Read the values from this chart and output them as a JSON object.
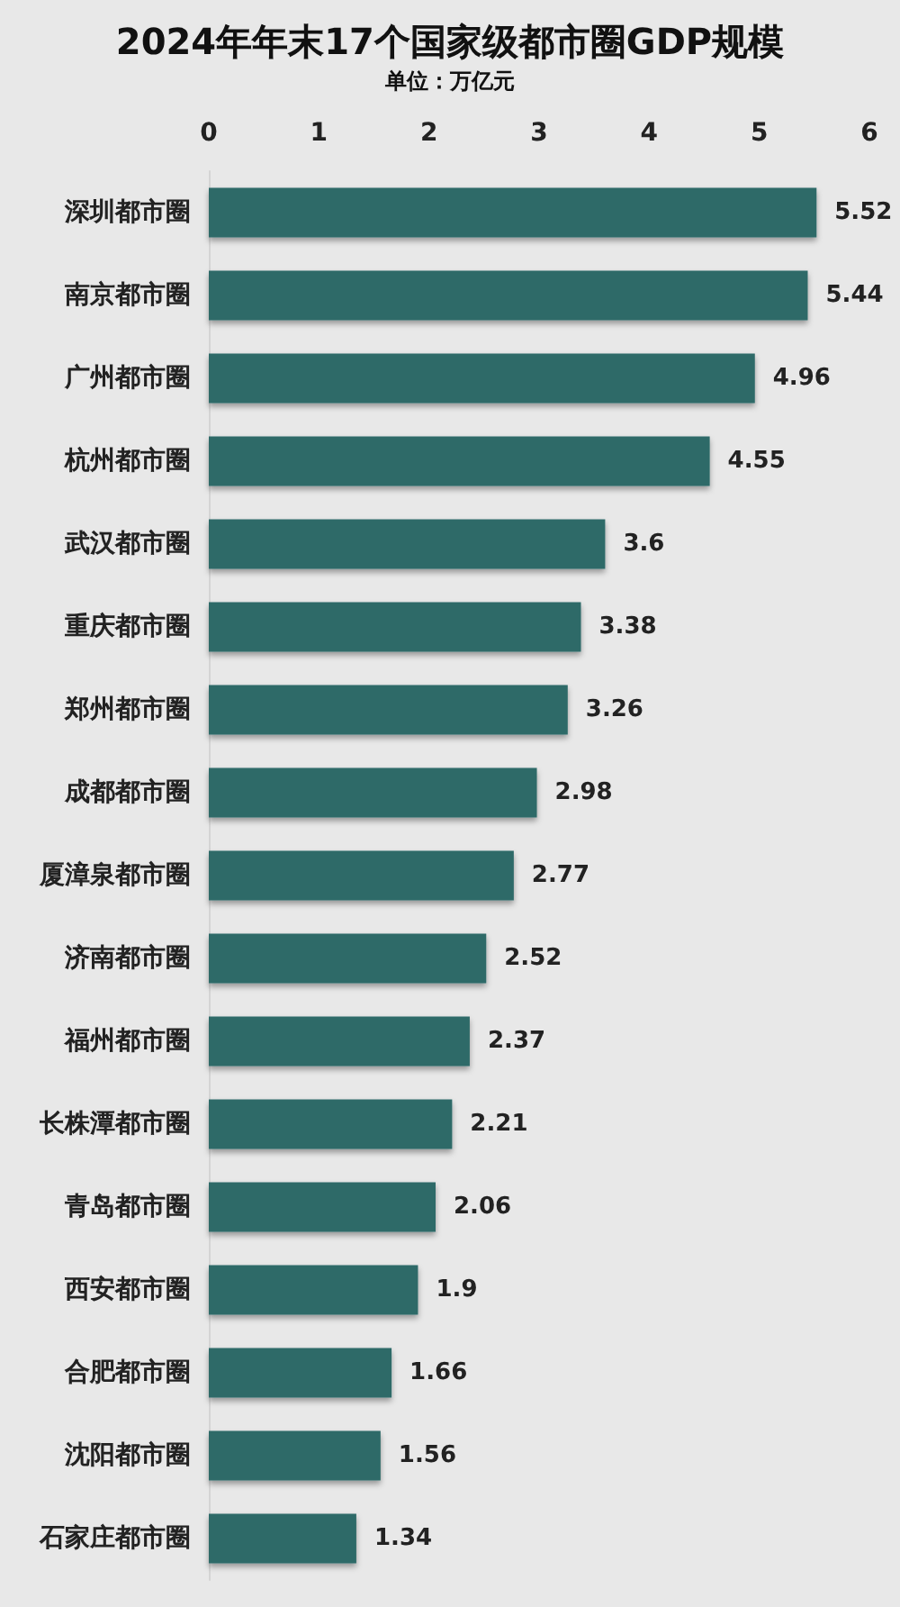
{
  "chart_data": {
    "type": "bar",
    "orientation": "horizontal",
    "title": "2024年年末17个国家级都市圈GDP规模",
    "subtitle": "单位：万亿元",
    "categories": [
      "深圳都市圈",
      "南京都市圈",
      "广州都市圈",
      "杭州都市圈",
      "武汉都市圈",
      "重庆都市圈",
      "郑州都市圈",
      "成都都市圈",
      "厦漳泉都市圈",
      "济南都市圈",
      "福州都市圈",
      "长株潭都市圈",
      "青岛都市圈",
      "西安都市圈",
      "合肥都市圈",
      "沈阳都市圈",
      "石家庄都市圈"
    ],
    "values": [
      5.52,
      5.44,
      4.96,
      4.55,
      3.6,
      3.38,
      3.26,
      2.98,
      2.77,
      2.52,
      2.37,
      2.21,
      2.06,
      1.9,
      1.66,
      1.56,
      1.34
    ],
    "color": "#2f6a68",
    "xlim": [
      0,
      6
    ],
    "xticks": [
      0,
      1,
      2,
      3,
      4,
      5,
      6
    ],
    "grid": false,
    "data_labels": true
  }
}
